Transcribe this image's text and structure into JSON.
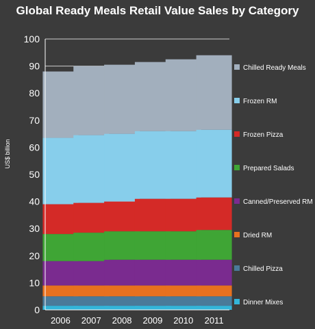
{
  "chart_data": {
    "type": "bar",
    "stacked": true,
    "title": "Global Ready Meals Retail Value Sales by Category",
    "xlabel": "",
    "ylabel": "US$ billion",
    "ylim": [
      0,
      100
    ],
    "yticks": [
      0,
      10,
      20,
      30,
      40,
      50,
      60,
      70,
      80,
      90,
      100
    ],
    "grid": true,
    "legend_position": "right",
    "categories": [
      "2006",
      "2007",
      "2008",
      "2009",
      "2010",
      "2011"
    ],
    "series": [
      {
        "name": "Dinner Mixes",
        "color": "#33b5d9",
        "values": [
          1.5,
          1.5,
          1.5,
          1.5,
          1.5,
          1.5
        ]
      },
      {
        "name": "Chilled Pizza",
        "color": "#4a7a99",
        "values": [
          3.5,
          3.5,
          3.5,
          3.5,
          3.5,
          3.5
        ]
      },
      {
        "name": "Dried RM",
        "color": "#e8711f",
        "values": [
          4.0,
          4.0,
          4.0,
          4.0,
          4.0,
          4.0
        ]
      },
      {
        "name": "Canned/Preserved RM",
        "color": "#7a2b8f",
        "values": [
          9.0,
          9.0,
          9.5,
          9.5,
          9.5,
          9.5
        ]
      },
      {
        "name": "Prepared Salads",
        "color": "#3fa535",
        "values": [
          10.0,
          10.5,
          10.5,
          10.5,
          10.5,
          11.0
        ]
      },
      {
        "name": "Frozen Pizza",
        "color": "#d42a27",
        "values": [
          11.0,
          11.0,
          11.0,
          12.0,
          12.0,
          12.0
        ]
      },
      {
        "name": "Frozen RM",
        "color": "#87ceeb",
        "values": [
          24.5,
          25.0,
          25.0,
          25.0,
          25.0,
          25.0
        ]
      },
      {
        "name": "Chilled Ready Meals",
        "color": "#a2afbd",
        "values": [
          24.5,
          25.5,
          25.5,
          25.5,
          26.5,
          27.5
        ]
      }
    ]
  },
  "colors": {
    "background": "#3b3b3b",
    "gridline": "#cfcfcf",
    "axis": "#ffffff",
    "text": "#ffffff"
  }
}
